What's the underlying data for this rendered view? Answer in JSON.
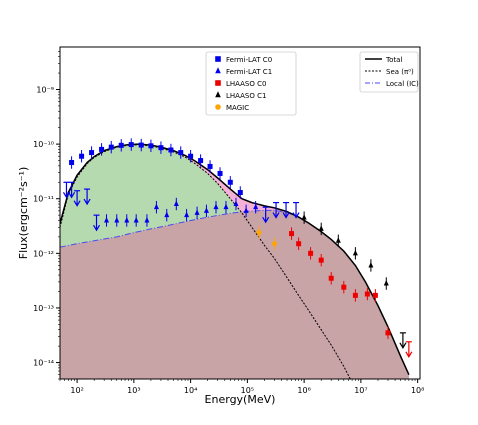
{
  "chart_data": {
    "type": "scatter",
    "title": "",
    "xlabel": "Energy(MeV)",
    "ylabel": "Flux(ergcm⁻²s⁻¹)",
    "xscale": "log",
    "yscale": "log",
    "xlim": [
      50,
      110000000
    ],
    "ylim": [
      5e-15,
      6e-09
    ],
    "xticks": [
      {
        "value": 100,
        "label": "10²"
      },
      {
        "value": 1000,
        "label": "10³"
      },
      {
        "value": 10000,
        "label": "10⁴"
      },
      {
        "value": 100000,
        "label": "10⁵"
      },
      {
        "value": 1000000,
        "label": "10⁶"
      },
      {
        "value": 10000000,
        "label": "10⁷"
      },
      {
        "value": 100000000,
        "label": "10⁸"
      }
    ],
    "yticks": [
      {
        "value": 1e-14,
        "label": "10⁻¹⁴"
      },
      {
        "value": 1e-13,
        "label": "10⁻¹³"
      },
      {
        "value": 1e-12,
        "label": "10⁻¹²"
      },
      {
        "value": 1e-11,
        "label": "10⁻¹¹"
      },
      {
        "value": 1e-10,
        "label": "10⁻¹⁰"
      },
      {
        "value": 1e-09,
        "label": "10⁻⁹"
      }
    ],
    "legend_position": "top-left",
    "legend_models_position": "top-right",
    "grid": false,
    "colors": {
      "fermi": "#0000ee",
      "lhaaso_c0": "#ee0000",
      "lhaaso_c1": "#000000",
      "magic": "#ffa500",
      "fill_pion": "#b6dab0",
      "fill_ic": "#c9a4a7",
      "fill_high": "#f5b2d6",
      "local": "#4a4af0"
    },
    "series": [
      {
        "name": "Fermi-LAT C0",
        "marker": "square",
        "color": "#0000ee",
        "points": [
          {
            "x": 80,
            "y": 4.6e-11,
            "ul": false
          },
          {
            "x": 120,
            "y": 6e-11,
            "ul": false
          },
          {
            "x": 180,
            "y": 7e-11,
            "ul": false
          },
          {
            "x": 270,
            "y": 8e-11,
            "ul": false
          },
          {
            "x": 400,
            "y": 8.8e-11,
            "ul": false
          },
          {
            "x": 600,
            "y": 9.5e-11,
            "ul": false
          },
          {
            "x": 900,
            "y": 9.8e-11,
            "ul": false
          },
          {
            "x": 1350,
            "y": 9.6e-11,
            "ul": false
          },
          {
            "x": 2000,
            "y": 9.3e-11,
            "ul": false
          },
          {
            "x": 3000,
            "y": 8.6e-11,
            "ul": false
          },
          {
            "x": 4500,
            "y": 7.8e-11,
            "ul": false
          },
          {
            "x": 6700,
            "y": 7e-11,
            "ul": false
          },
          {
            "x": 10000,
            "y": 6e-11,
            "ul": false
          },
          {
            "x": 15000,
            "y": 5e-11,
            "ul": false
          },
          {
            "x": 22000,
            "y": 3.9e-11,
            "ul": false
          },
          {
            "x": 33000,
            "y": 2.9e-11,
            "ul": false
          },
          {
            "x": 50000,
            "y": 2e-11,
            "ul": false
          },
          {
            "x": 75000,
            "y": 1.3e-11,
            "ul": false
          }
        ]
      },
      {
        "name": "Fermi-LAT C1",
        "marker": "triangle",
        "color": "#0000ee",
        "points": [
          {
            "x": 65,
            "y": 2e-11,
            "ul": true
          },
          {
            "x": 80,
            "y": 2e-11,
            "ul": true
          },
          {
            "x": 100,
            "y": 1.4e-11,
            "ul": true
          },
          {
            "x": 150,
            "y": 1.5e-11,
            "ul": true
          },
          {
            "x": 220,
            "y": 5e-12,
            "ul": true
          },
          {
            "x": 330,
            "y": 4e-12,
            "ul": false
          },
          {
            "x": 500,
            "y": 4e-12,
            "ul": false
          },
          {
            "x": 750,
            "y": 4e-12,
            "ul": false
          },
          {
            "x": 1100,
            "y": 4e-12,
            "ul": false
          },
          {
            "x": 1700,
            "y": 4e-12,
            "ul": false
          },
          {
            "x": 2500,
            "y": 7e-12,
            "ul": false
          },
          {
            "x": 3800,
            "y": 5e-12,
            "ul": false
          },
          {
            "x": 5600,
            "y": 8e-12,
            "ul": false
          },
          {
            "x": 8500,
            "y": 5e-12,
            "ul": false
          },
          {
            "x": 13000,
            "y": 5.5e-12,
            "ul": false
          },
          {
            "x": 19000,
            "y": 6e-12,
            "ul": false
          },
          {
            "x": 28000,
            "y": 7e-12,
            "ul": false
          },
          {
            "x": 42000,
            "y": 7e-12,
            "ul": false
          },
          {
            "x": 63000,
            "y": 8e-12,
            "ul": false
          },
          {
            "x": 95000,
            "y": 6e-12,
            "ul": false
          },
          {
            "x": 140000,
            "y": 7e-12,
            "ul": false
          },
          {
            "x": 210000,
            "y": 7e-12,
            "ul": true
          },
          {
            "x": 320000,
            "y": 8.5e-12,
            "ul": true
          },
          {
            "x": 480000,
            "y": 8.5e-12,
            "ul": true
          },
          {
            "x": 720000,
            "y": 8.5e-12,
            "ul": true
          }
        ]
      },
      {
        "name": "LHAASO C0",
        "marker": "square",
        "color": "#ee0000",
        "points": [
          {
            "x": 600000,
            "y": 2.3e-12,
            "ul": false
          },
          {
            "x": 800000,
            "y": 1.5e-12,
            "ul": false
          },
          {
            "x": 1300000,
            "y": 1e-12,
            "ul": false
          },
          {
            "x": 2000000,
            "y": 7.5e-13,
            "ul": false
          },
          {
            "x": 3000000,
            "y": 3.5e-13,
            "ul": false
          },
          {
            "x": 5000000,
            "y": 2.4e-13,
            "ul": false
          },
          {
            "x": 8000000,
            "y": 1.7e-13,
            "ul": false
          },
          {
            "x": 13000000,
            "y": 1.8e-13,
            "ul": false
          },
          {
            "x": 18000000,
            "y": 1.7e-13,
            "ul": false
          },
          {
            "x": 30000000,
            "y": 3.5e-14,
            "ul": false
          },
          {
            "x": 70000000,
            "y": 2.4e-14,
            "ul": true
          }
        ]
      },
      {
        "name": "LHAASO C1",
        "marker": "triangle",
        "color": "#000000",
        "points": [
          {
            "x": 1000000,
            "y": 4.5e-12,
            "ul": false
          },
          {
            "x": 2000000,
            "y": 2.8e-12,
            "ul": false
          },
          {
            "x": 4000000,
            "y": 1.7e-12,
            "ul": false
          },
          {
            "x": 8000000,
            "y": 1e-12,
            "ul": false
          },
          {
            "x": 15000000,
            "y": 6e-13,
            "ul": false
          },
          {
            "x": 28000000,
            "y": 2.8e-13,
            "ul": false
          },
          {
            "x": 55000000,
            "y": 3.5e-14,
            "ul": true
          }
        ]
      },
      {
        "name": "MAGIC",
        "marker": "circle",
        "color": "#ffa500",
        "points": [
          {
            "x": 160000,
            "y": 2.4e-12,
            "ul": false
          },
          {
            "x": 300000,
            "y": 1.5e-12,
            "ul": false
          }
        ]
      }
    ],
    "model_legend": [
      {
        "name": "Total",
        "style": "solid"
      },
      {
        "name": "Sea (π⁰)",
        "style": "dashed"
      },
      {
        "name": "Local (IC)",
        "style": "dashdot"
      }
    ],
    "models": {
      "total": [
        [
          50,
          3.5e-12
        ],
        [
          70,
          1.3e-11
        ],
        [
          100,
          2.7e-11
        ],
        [
          150,
          4.6e-11
        ],
        [
          200,
          5.9e-11
        ],
        [
          300,
          7.6e-11
        ],
        [
          500,
          9e-11
        ],
        [
          800,
          9.8e-11
        ],
        [
          1200,
          1e-10
        ],
        [
          2000,
          9.6e-11
        ],
        [
          3000,
          8.8e-11
        ],
        [
          5000,
          7.6e-11
        ],
        [
          8000,
          6.2e-11
        ],
        [
          12000,
          4.9e-11
        ],
        [
          20000,
          3.4e-11
        ],
        [
          30000,
          2.4e-11
        ],
        [
          50000,
          1.5e-11
        ],
        [
          80000,
          1e-11
        ],
        [
          120000,
          8.5e-12
        ],
        [
          200000,
          7.4e-12
        ],
        [
          300000,
          6.8e-12
        ],
        [
          500000,
          5.8e-12
        ],
        [
          800000,
          4.6e-12
        ],
        [
          1200000,
          3.6e-12
        ],
        [
          2000000,
          2.5e-12
        ],
        [
          3000000,
          1.8e-12
        ],
        [
          5000000,
          1.1e-12
        ],
        [
          8000000,
          6e-13
        ],
        [
          12000000,
          3e-13
        ],
        [
          20000000,
          1.1e-13
        ],
        [
          30000000,
          4.5e-14
        ],
        [
          50000000,
          1.3e-14
        ],
        [
          70000000,
          6e-15
        ]
      ],
      "sea": [
        [
          50,
          3e-12
        ],
        [
          70,
          1.2e-11
        ],
        [
          100,
          2.5e-11
        ],
        [
          150,
          4.4e-11
        ],
        [
          200,
          5.7e-11
        ],
        [
          300,
          7.3e-11
        ],
        [
          500,
          8.8e-11
        ],
        [
          800,
          9.5e-11
        ],
        [
          1200,
          9.7e-11
        ],
        [
          2000,
          9.3e-11
        ],
        [
          3000,
          8.5e-11
        ],
        [
          5000,
          7.2e-11
        ],
        [
          8000,
          5.8e-11
        ],
        [
          12000,
          4.4e-11
        ],
        [
          20000,
          2.9e-11
        ],
        [
          30000,
          1.9e-11
        ],
        [
          50000,
          1e-11
        ],
        [
          80000,
          5.5e-12
        ],
        [
          120000,
          3e-12
        ],
        [
          200000,
          1.4e-12
        ],
        [
          300000,
          8e-13
        ],
        [
          500000,
          3.6e-13
        ],
        [
          800000,
          1.7e-13
        ],
        [
          1200000,
          9e-14
        ],
        [
          2000000,
          4e-14
        ],
        [
          3000000,
          2.1e-14
        ],
        [
          5000000,
          8.5e-15
        ],
        [
          6500000,
          5e-15
        ]
      ],
      "local": [
        [
          50,
          1.3e-12
        ],
        [
          100,
          1.5e-12
        ],
        [
          200,
          1.7e-12
        ],
        [
          500,
          2e-12
        ],
        [
          1000,
          2.4e-12
        ],
        [
          2000,
          2.8e-12
        ],
        [
          5000,
          3.4e-12
        ],
        [
          10000,
          4e-12
        ],
        [
          20000,
          4.6e-12
        ],
        [
          50000,
          5.4e-12
        ],
        [
          100000,
          5.9e-12
        ],
        [
          200000,
          6.1e-12
        ],
        [
          300000,
          6.1e-12
        ],
        [
          500000,
          5.6e-12
        ],
        [
          800000,
          4.6e-12
        ],
        [
          1200000,
          3.6e-12
        ],
        [
          2000000,
          2.5e-12
        ],
        [
          3000000,
          1.8e-12
        ],
        [
          5000000,
          1.1e-12
        ],
        [
          8000000,
          6e-13
        ],
        [
          12000000,
          3e-13
        ],
        [
          20000000,
          1.1e-13
        ],
        [
          30000000,
          4.5e-14
        ],
        [
          50000000,
          1.3e-14
        ],
        [
          70000000,
          6e-15
        ]
      ]
    }
  }
}
